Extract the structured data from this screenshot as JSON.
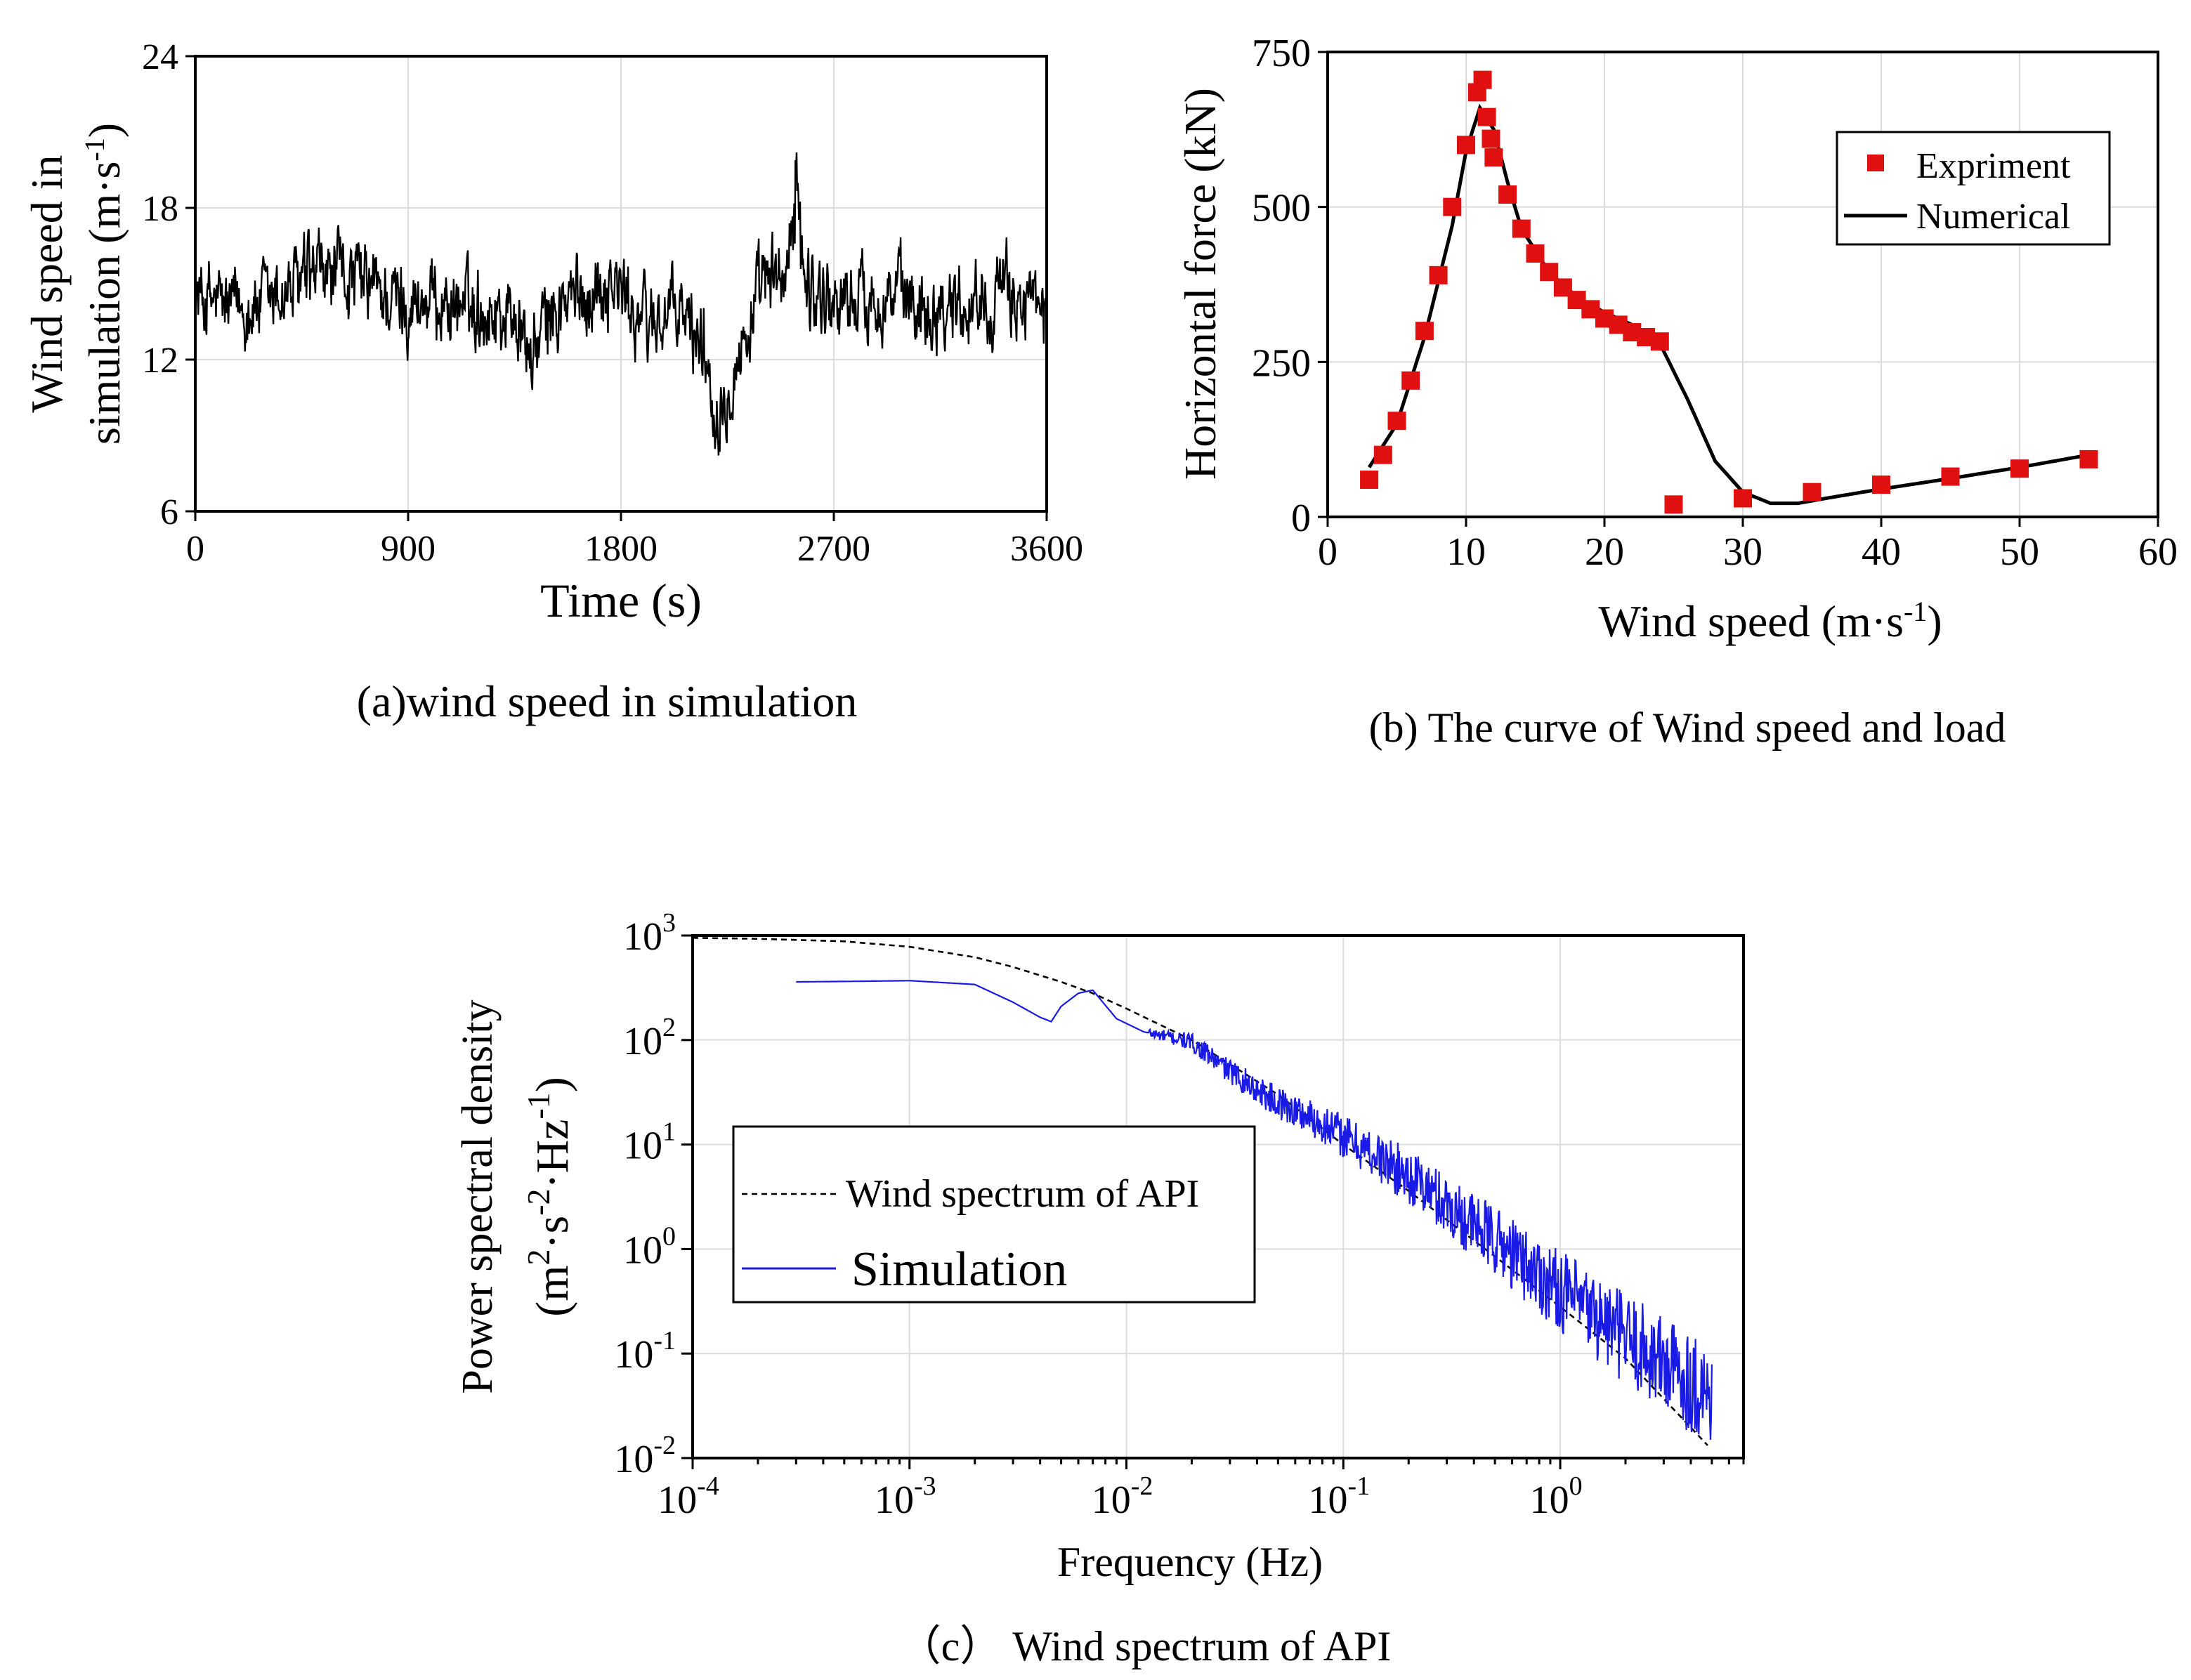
{
  "chart_data": [
    {
      "type": "line",
      "caption": "(a)wind speed in simulation",
      "xlabel": "Time (s)",
      "ylabel": [
        "Wind speed in",
        "simulation (m·s",
        "-1",
        ")"
      ],
      "xlim": [
        0,
        3600
      ],
      "ylim": [
        6,
        24
      ],
      "xticks": [
        0,
        900,
        1800,
        2700,
        3600
      ],
      "yticks": [
        6,
        12,
        18,
        24
      ],
      "xtick_labels": [
        "0",
        "900",
        "1800",
        "2700",
        "3600"
      ],
      "ytick_labels": [
        "6",
        "12",
        "18",
        "24"
      ],
      "grid": true,
      "series": [
        {
          "color": "#000000",
          "trend_x": [
            0,
            150,
            300,
            450,
            600,
            750,
            900,
            1050,
            1200,
            1350,
            1420,
            1500,
            1650,
            1750,
            1800,
            1900,
            2050,
            2150,
            2200,
            2300,
            2400,
            2500,
            2540,
            2600,
            2700,
            2900,
            3100,
            3300,
            3500,
            3600
          ],
          "trend_y": [
            14.5,
            14.0,
            14.2,
            15.0,
            15.4,
            14.8,
            14.2,
            14.3,
            14.0,
            13.8,
            12.0,
            13.8,
            14.6,
            15.2,
            14.6,
            13.5,
            13.8,
            12.6,
            10.0,
            12.2,
            14.8,
            15.4,
            17.2,
            14.8,
            14.3,
            14.6,
            14.2,
            14.4,
            14.5,
            13.2
          ]
        }
      ]
    },
    {
      "type": "scatter",
      "caption": "(b) The curve of Wind speed and load",
      "xlabel": "Wind speed (m·s",
      "xlabel_sup": "-1",
      "xlabel_end": ")",
      "ylabel": "Horizontal force (kN)",
      "xlim": [
        0,
        60
      ],
      "ylim": [
        0,
        750
      ],
      "xticks": [
        0,
        10,
        20,
        30,
        40,
        50,
        60
      ],
      "yticks": [
        0,
        250,
        500,
        750
      ],
      "xtick_labels": [
        "0",
        "10",
        "20",
        "30",
        "40",
        "50",
        "60"
      ],
      "ytick_labels": [
        "0",
        "250",
        "500",
        "750"
      ],
      "grid": true,
      "legend_position": "top-right",
      "series": [
        {
          "name": "Expriment",
          "color": "#e01010",
          "marker": "square",
          "x": [
            3,
            4,
            5,
            6,
            7,
            8,
            9,
            10,
            10.8,
            11.2,
            11.5,
            11.8,
            12,
            13,
            14,
            15,
            16,
            17,
            18,
            19,
            20,
            21,
            22,
            23,
            24,
            25,
            30,
            35,
            40,
            45,
            50,
            55
          ],
          "y": [
            60,
            100,
            155,
            220,
            300,
            390,
            500,
            600,
            685,
            705,
            645,
            610,
            580,
            520,
            465,
            425,
            395,
            370,
            350,
            335,
            320,
            310,
            298,
            290,
            283,
            20,
            30,
            40,
            52,
            65,
            78,
            93
          ]
        },
        {
          "name": "Numerical",
          "color": "#000000",
          "marker": "line",
          "x": [
            3,
            5,
            7,
            9,
            10,
            11,
            12,
            13,
            14,
            16,
            18,
            20,
            22,
            24,
            26,
            28,
            30,
            32,
            34,
            36,
            40,
            45,
            50,
            55
          ],
          "y": [
            80,
            150,
            290,
            470,
            590,
            660,
            625,
            540,
            465,
            395,
            355,
            330,
            310,
            280,
            190,
            90,
            40,
            22,
            22,
            30,
            45,
            62,
            80,
            100
          ]
        }
      ]
    },
    {
      "type": "line",
      "caption": "（c） Wind spectrum of API",
      "xlabel": "Frequency (Hz)",
      "ylabel": "Power spectral density",
      "ylabel2": "(m",
      "log_x": true,
      "log_y": true,
      "xlim": [
        0.0001,
        7
      ],
      "ylim": [
        0.01,
        1000
      ],
      "xtick_exponents": [
        "-4",
        "-3",
        "-2",
        "-1"
      ],
      "xtick_last_label": "10",
      "ytick_exponents": [
        "3",
        "2",
        "1",
        "0",
        "-1",
        "-2"
      ],
      "grid": true,
      "legend_position": "center-left",
      "series": [
        {
          "name": "Wind spectrum of API",
          "color": "#000000",
          "style": "dashed",
          "x": [
            0.0001,
            0.0002,
            0.0005,
            0.001,
            0.002,
            0.003,
            0.005,
            0.007,
            0.01,
            0.02,
            0.05,
            0.1,
            0.2,
            0.5,
            1,
            2,
            5
          ],
          "y": [
            950,
            930,
            880,
            780,
            620,
            500,
            360,
            280,
            200,
            100,
            30,
            10,
            3.6,
            0.85,
            0.28,
            0.09,
            0.012
          ]
        },
        {
          "name": "Simulation",
          "color": "#1a1ae6",
          "style": "solid",
          "x": [
            0.0003,
            0.0006,
            0.001,
            0.002,
            0.003,
            0.004,
            0.0045,
            0.005,
            0.006,
            0.007,
            0.009,
            0.012,
            0.02,
            0.03,
            0.05,
            0.08,
            0.1,
            0.2,
            0.5,
            1,
            2,
            5
          ],
          "y": [
            360,
            365,
            370,
            340,
            230,
            165,
            150,
            210,
            280,
            300,
            160,
            120,
            95,
            50,
            25,
            16,
            12,
            5,
            1.2,
            0.4,
            0.14,
            0.04
          ]
        }
      ]
    }
  ],
  "legend_c": {
    "api": "Wind spectrum of API",
    "sim": "Simulation"
  },
  "units_c": {
    "sup1": "2",
    "mid": "·s",
    "sup2": "-2",
    "mid2": "·Hz",
    "sup3": "-1",
    "end": ")"
  }
}
